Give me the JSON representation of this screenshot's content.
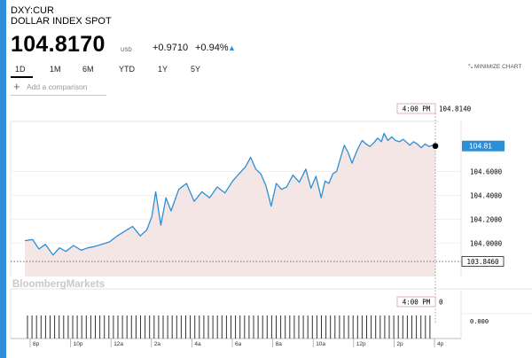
{
  "header": {
    "ticker": "DXY:CUR",
    "name": "DOLLAR INDEX SPOT",
    "price": "104.8170",
    "currency": "USD",
    "change": "+0.9710",
    "change_pct": "+0.94%",
    "accent_color": "#2e8ed6"
  },
  "tabs": [
    {
      "label": "1D",
      "active": true
    },
    {
      "label": "1M",
      "active": false
    },
    {
      "label": "6M",
      "active": false
    },
    {
      "label": "YTD",
      "active": false
    },
    {
      "label": "1Y",
      "active": false
    },
    {
      "label": "5Y",
      "active": false
    }
  ],
  "minimize_label": "MINIMIZE CHART",
  "compare": {
    "placeholder": "Add a comparison",
    "icon": "plus-icon"
  },
  "watermark": "BloombergMarkets",
  "chart_data": {
    "type": "line",
    "y_ticks": [
      "104.6000",
      "104.4000",
      "104.2000",
      "104.0000"
    ],
    "x_ticks": [
      "8p",
      "10p",
      "12a",
      "2a",
      "4a",
      "6a",
      "8a",
      "10a",
      "12p",
      "2p",
      "4p"
    ],
    "ylim": [
      103.72,
      105.02
    ],
    "cursor": {
      "time": "4:00 PM",
      "value": "104.8140"
    },
    "last_value": "104.81",
    "previous_close": "103.8460",
    "line_color": "#2e8ed6",
    "fill_color": "#f5e6e6",
    "volume": {
      "cursor_time": "4:00 PM",
      "cursor_value": "0",
      "axis_value": "0.000"
    },
    "series": [
      {
        "x": [
          0,
          0.3,
          0.55,
          0.8,
          1.1,
          1.35,
          1.6,
          1.9,
          2.2,
          2.45,
          2.7,
          3,
          3.3,
          3.6,
          3.9,
          4.2,
          4.5,
          4.75,
          4.95,
          5.1,
          5.3,
          5.5,
          5.7,
          6,
          6.3,
          6.6,
          6.9,
          7.2,
          7.5,
          7.8,
          8.1,
          8.35,
          8.6,
          8.8,
          9,
          9.2,
          9.4,
          9.6,
          9.8,
          10,
          10.2,
          10.45,
          10.7,
          10.95,
          11.15,
          11.35,
          11.55,
          11.7,
          11.85,
          12,
          12.15,
          12.3,
          12.45,
          12.6,
          12.75,
          12.9,
          13,
          13.15,
          13.3,
          13.45,
          13.6,
          13.75,
          13.9,
          14,
          14.15,
          14.3,
          14.45,
          14.6,
          14.75,
          14.9,
          15,
          15.15,
          15.3,
          15.45,
          15.6,
          15.75,
          15.9,
          16
        ],
        "values": [
          104.02,
          104.03,
          103.95,
          103.99,
          103.9,
          103.96,
          103.93,
          103.98,
          103.94,
          103.96,
          103.97,
          103.99,
          104.01,
          104.06,
          104.1,
          104.14,
          104.06,
          104.11,
          104.22,
          104.43,
          104.15,
          104.38,
          104.27,
          104.45,
          104.5,
          104.35,
          104.43,
          104.38,
          104.47,
          104.42,
          104.52,
          104.58,
          104.64,
          104.72,
          104.62,
          104.58,
          104.48,
          104.31,
          104.5,
          104.45,
          104.47,
          104.57,
          104.51,
          104.62,
          104.46,
          104.56,
          104.38,
          104.52,
          104.5,
          104.58,
          104.6,
          104.71,
          104.82,
          104.76,
          104.67,
          104.75,
          104.8,
          104.86,
          104.83,
          104.81,
          104.84,
          104.88,
          104.85,
          104.92,
          104.86,
          104.89,
          104.86,
          104.85,
          104.87,
          104.84,
          104.82,
          104.85,
          104.83,
          104.8,
          104.83,
          104.81,
          104.82,
          104.814
        ]
      }
    ]
  }
}
